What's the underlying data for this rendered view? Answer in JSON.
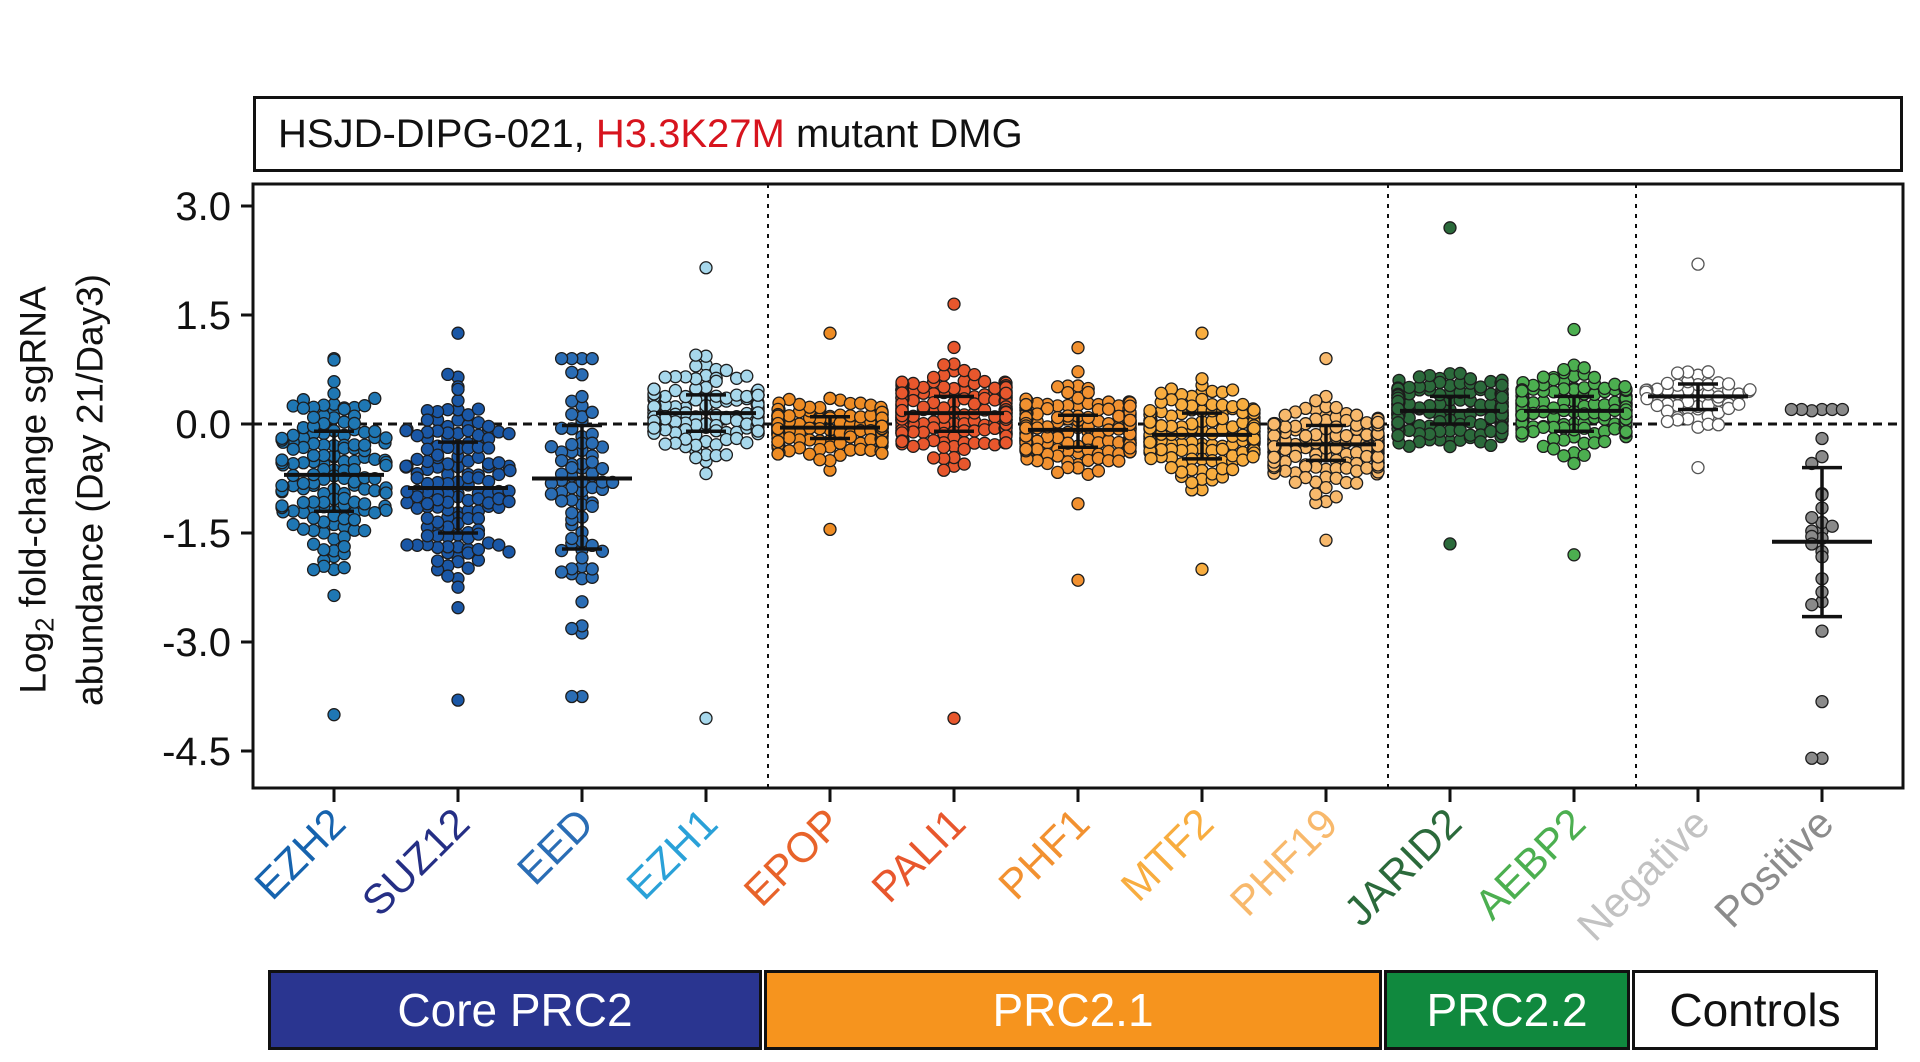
{
  "title": {
    "part1": "HSJD-DIPG-021, ",
    "part2": "H3.3K27M",
    "part3": " mutant DMG",
    "highlight_color": "#d7141e"
  },
  "ylabel": {
    "prefix": "Log",
    "subscript": "2",
    "suffix": " fold-change sgRNA",
    "line2": "abundance (Day 21/Day3)"
  },
  "groups": [
    {
      "label": "Core PRC2",
      "color": "#2a3590",
      "text_color": "#ffffff"
    },
    {
      "label": "PRC2.1",
      "color": "#f6941e",
      "text_color": "#ffffff"
    },
    {
      "label": "PRC2.2",
      "color": "#10893e",
      "text_color": "#ffffff"
    },
    {
      "label": "Controls",
      "color": "#ffffff",
      "text_color": "#111111"
    }
  ],
  "chart_data": {
    "type": "scatter",
    "subtype": "dot-strip with mean ± SD",
    "ylim": [
      -5.0,
      3.2
    ],
    "yticks": [
      "3.0",
      "1.5",
      "0.0",
      "-1.5",
      "-3.0",
      "-4.5"
    ],
    "ytick_values": [
      3.0,
      1.5,
      0.0,
      -1.5,
      -3.0,
      -4.5
    ],
    "reference_line": 0.0,
    "categories": [
      "EZH2",
      "SUZ12",
      "EED",
      "EZH1",
      "EPOP",
      "PALI1",
      "PHF1",
      "MTF2",
      "PHF19",
      "JARID2",
      "AEBP2",
      "Negative",
      "Positive"
    ],
    "series": [
      {
        "name": "EZH2",
        "group": "Core PRC2",
        "color": "#1f77b4",
        "label_color": "#1663ae",
        "n": 150,
        "mean": -0.7,
        "sd_low": -1.2,
        "sd_high": -0.1,
        "min": -4.0,
        "max": 0.9
      },
      {
        "name": "SUZ12",
        "group": "Core PRC2",
        "color": "#1a57a6",
        "label_color": "#252f85",
        "n": 150,
        "mean": -0.88,
        "sd_low": -1.5,
        "sd_high": -0.25,
        "min": -3.8,
        "max": 1.25
      },
      {
        "name": "EED",
        "group": "Core PRC2",
        "color": "#2a6db5",
        "label_color": "#2a6db5",
        "n": 80,
        "mean": -0.75,
        "sd_low": -1.72,
        "sd_high": -0.02,
        "min": -3.75,
        "max": 0.9
      },
      {
        "name": "EZH1",
        "group": "Core PRC2",
        "color": "#a7d8ec",
        "label_color": "#2aa1d8",
        "n": 150,
        "mean": 0.15,
        "sd_low": -0.1,
        "sd_high": 0.4,
        "min": -4.05,
        "max": 2.15
      },
      {
        "name": "EPOP",
        "group": "PRC2.1",
        "color": "#ee8c24",
        "label_color": "#e8632a",
        "n": 200,
        "mean": -0.05,
        "sd_low": -0.2,
        "sd_high": 0.1,
        "min": -1.45,
        "max": 1.25
      },
      {
        "name": "PALI1",
        "group": "PRC2.1",
        "color": "#e8572d",
        "label_color": "#e8572d",
        "n": 250,
        "mean": 0.15,
        "sd_low": -0.1,
        "sd_high": 0.38,
        "min": -4.05,
        "max": 1.65
      },
      {
        "name": "PHF1",
        "group": "PRC2.1",
        "color": "#f29130",
        "label_color": "#f29130",
        "n": 200,
        "mean": -0.08,
        "sd_low": -0.32,
        "sd_high": 0.12,
        "min": -2.15,
        "max": 1.05
      },
      {
        "name": "MTF2",
        "group": "PRC2.1",
        "color": "#f8ad3f",
        "label_color": "#f8ad3f",
        "n": 150,
        "mean": -0.15,
        "sd_low": -0.48,
        "sd_high": 0.15,
        "min": -2.0,
        "max": 1.25
      },
      {
        "name": "PHF19",
        "group": "PRC2.1",
        "color": "#f8b96c",
        "label_color": "#f8b96c",
        "n": 180,
        "mean": -0.28,
        "sd_low": -0.5,
        "sd_high": -0.02,
        "min": -1.6,
        "max": 0.9
      },
      {
        "name": "JARID2",
        "group": "PRC2.2",
        "color": "#2b6a3b",
        "label_color": "#2b6a3b",
        "n": 250,
        "mean": 0.18,
        "sd_low": 0.0,
        "sd_high": 0.38,
        "min": -1.65,
        "max": 2.7
      },
      {
        "name": "AEBP2",
        "group": "PRC2.2",
        "color": "#4caf50",
        "label_color": "#4caf50",
        "n": 150,
        "mean": 0.18,
        "sd_low": -0.1,
        "sd_high": 0.38,
        "min": -1.8,
        "max": 1.3
      },
      {
        "name": "Negative",
        "group": "Controls",
        "color": "#ffffff",
        "label_color": "#c2c2c2",
        "n": 50,
        "mean": 0.38,
        "sd_low": 0.2,
        "sd_high": 0.55,
        "min": -0.6,
        "max": 2.2
      },
      {
        "name": "Positive",
        "group": "Controls",
        "color": "#8a8a8a",
        "label_color": "#8c8c8c",
        "n": 30,
        "mean": -1.62,
        "sd_low": -2.65,
        "sd_high": -0.6,
        "min": -4.6,
        "max": 0.2
      }
    ],
    "group_spans": [
      {
        "label": "Core PRC2",
        "first": 0,
        "last": 3
      },
      {
        "label": "PRC2.1",
        "first": 4,
        "last": 8
      },
      {
        "label": "PRC2.2",
        "first": 9,
        "last": 10
      },
      {
        "label": "Controls",
        "first": 11,
        "last": 12
      }
    ]
  }
}
